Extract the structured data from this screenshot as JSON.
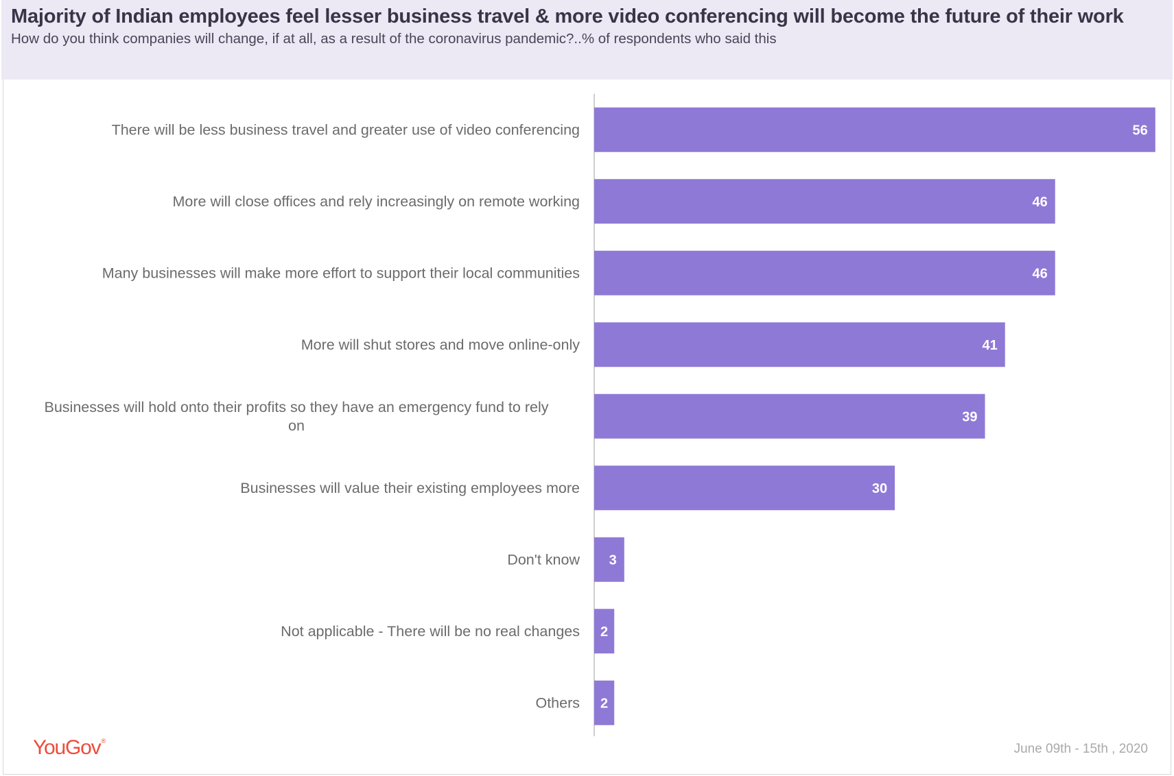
{
  "header": {
    "title": "Majority of Indian employees feel lesser business travel & more video conferencing will become the future of their work",
    "subtitle": "How do you think companies will change, if at all, as a result of the coronavirus pandemic?..% of respondents who said this"
  },
  "footer": {
    "logo": "YouGov",
    "date": "June 09th - 15th , 2020"
  },
  "colors": {
    "bar": "#8f79d6",
    "bar_label": "#ffffff",
    "category_label": "#6b6b6b",
    "axis": "#bdbdbd",
    "logo": "#ee4b3b"
  },
  "chart_data": {
    "type": "bar",
    "orientation": "horizontal",
    "categories": [
      "There will be less business travel and greater use of video conferencing",
      "More will close offices and rely increasingly on remote working",
      "Many businesses will make more effort to support their local communities",
      "More will shut stores and move online-only",
      "Businesses will hold onto  their profits so they have an emergency fund to rely on",
      "Businesses will value their existing employees more",
      "Don't know",
      "Not applicable - There will be no real changes",
      "Others"
    ],
    "values": [
      56,
      46,
      46,
      41,
      39,
      30,
      3,
      2,
      2
    ],
    "xlim": [
      0,
      63
    ],
    "grid": false,
    "legend": "none"
  }
}
